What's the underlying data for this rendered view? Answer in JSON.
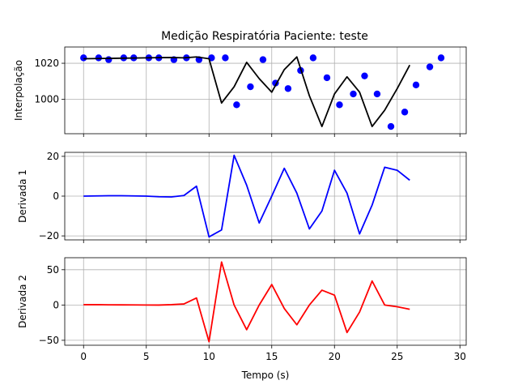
{
  "chart_data": {
    "type": "line",
    "title": "Medição Respiratória Paciente: teste",
    "xlabel": "Tempo (s)",
    "xlim": [
      -1.5,
      30.5
    ],
    "xticks": [
      0,
      5,
      10,
      15,
      20,
      25,
      30
    ],
    "grid": true,
    "panels": [
      {
        "ylabel": "Interpolação",
        "ylim": [
          981,
          1029
        ],
        "yticks": [
          1000,
          1020
        ],
        "series": [
          {
            "kind": "scatter",
            "color": "#0000ff",
            "x": [
              0,
              1.2,
              2.0,
              3.2,
              4.0,
              5.2,
              6.0,
              7.2,
              8.2,
              9.2,
              10.2,
              11.3,
              12.2,
              13.3,
              14.3,
              15.3,
              16.3,
              17.3,
              18.3,
              19.4,
              20.4,
              21.5,
              22.4,
              23.4,
              24.5,
              25.6,
              26.5,
              27.6,
              28.5
            ],
            "y": [
              1023,
              1023,
              1022,
              1023,
              1023,
              1023,
              1023,
              1022,
              1023,
              1022,
              1023,
              1023,
              997,
              1007,
              1022,
              1009,
              1006,
              1016,
              1023,
              1012,
              997,
              1003,
              1013,
              1003,
              985,
              993,
              1008,
              1018,
              1023
            ]
          },
          {
            "kind": "line",
            "color": "#000000",
            "x": [
              0,
              1,
              2,
              3,
              4,
              5,
              6,
              7,
              8,
              9,
              10,
              11,
              12,
              13,
              14,
              15,
              16,
              17,
              18,
              19,
              20,
              21,
              22,
              23,
              24,
              25,
              26
            ],
            "y": [
              1022.5,
              1022.6,
              1022.7,
              1022.8,
              1022.9,
              1023,
              1023.1,
              1023.2,
              1023.0,
              1023.5,
              1022.5,
              998,
              1007,
              1020.5,
              1011.5,
              1004,
              1016.5,
              1023.5,
              1002,
              985,
              1003,
              1012.5,
              1004,
              985,
              994,
              1006,
              1019
            ]
          }
        ]
      },
      {
        "ylabel": "Derivada 1",
        "ylim": [
          -22,
          22
        ],
        "yticks": [
          -20,
          0,
          20
        ],
        "series": [
          {
            "kind": "line",
            "color": "#0000ff",
            "x": [
              0,
              1,
              2,
              3,
              4,
              5,
              6,
              7,
              8,
              9,
              10,
              11,
              12,
              13,
              14,
              15,
              16,
              17,
              18,
              19,
              20,
              21,
              22,
              23,
              24,
              25,
              26
            ],
            "y": [
              0,
              0.1,
              0.2,
              0.2,
              0.1,
              0,
              -0.3,
              -0.4,
              0.3,
              5,
              -20.5,
              -17,
              20.5,
              5.5,
              -13.5,
              0,
              14,
              1.5,
              -16.5,
              -7.5,
              13,
              1.5,
              -19,
              -4.5,
              14.5,
              13,
              8
            ]
          }
        ]
      },
      {
        "ylabel": "Derivada 2",
        "ylim": [
          -57,
          67
        ],
        "yticks": [
          -50,
          0,
          50
        ],
        "series": [
          {
            "kind": "line",
            "color": "#ff0000",
            "x": [
              0,
              1,
              2,
              3,
              4,
              5,
              6,
              7,
              8,
              9,
              10,
              11,
              12,
              13,
              14,
              15,
              16,
              17,
              18,
              19,
              20,
              21,
              22,
              23,
              24,
              25,
              26
            ],
            "y": [
              0.5,
              0.5,
              0.3,
              0.2,
              0.1,
              0,
              -0.1,
              0.5,
              1.5,
              10,
              -52,
              61,
              0,
              -35,
              0,
              29,
              -5,
              -28,
              0,
              21,
              14,
              -39,
              -10,
              34,
              0,
              -2.5,
              -6
            ]
          }
        ]
      }
    ]
  }
}
